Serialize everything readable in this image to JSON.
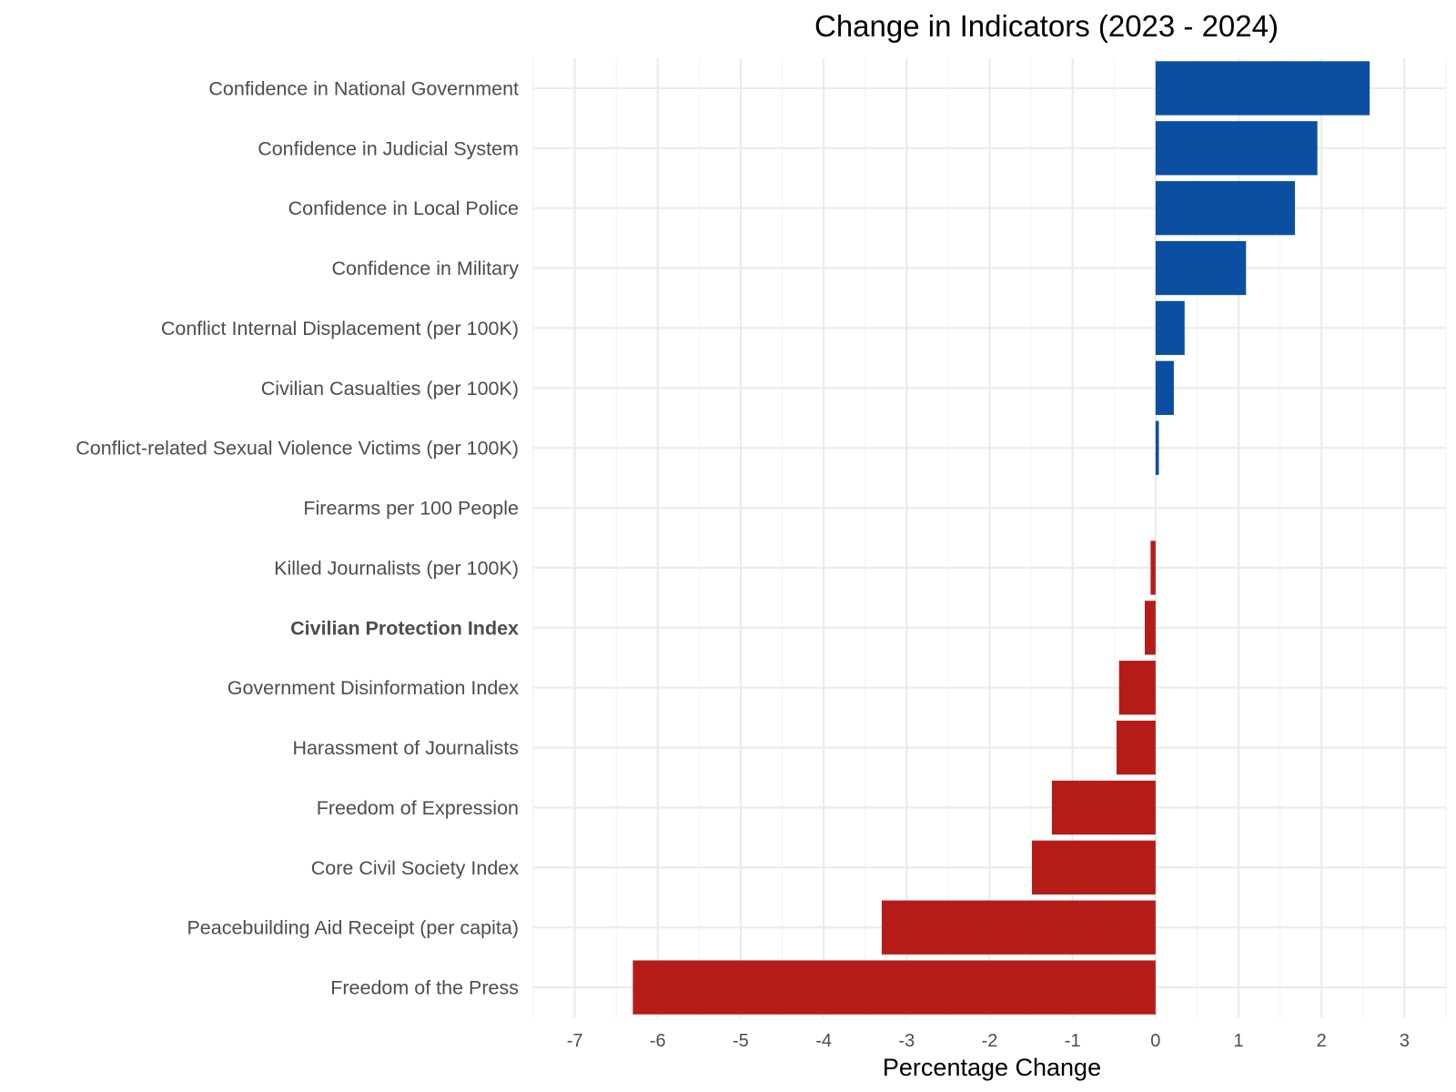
{
  "chart_data": {
    "type": "bar",
    "orientation": "horizontal",
    "title": "Change in Indicators (2023 - 2024)",
    "xlabel": "Percentage Change",
    "ylabel": "",
    "xlim": [
      -7.5,
      3.5
    ],
    "xticks": [
      -7,
      -6,
      -5,
      -4,
      -3,
      -2,
      -1,
      0,
      1,
      2,
      3
    ],
    "grid": true,
    "legend": "none",
    "colors": {
      "positive": "#0b4fa2",
      "negative": "#b51c18"
    },
    "categories": [
      "Confidence in National Government",
      "Confidence in Judicial System",
      "Confidence in Local Police",
      "Confidence in Military",
      "Conflict Internal Displacement (per 100K)",
      "Civilian Casualties (per 100K)",
      "Conflict-related Sexual Violence Victims (per 100K)",
      "Firearms per 100 People",
      "Killed Journalists (per 100K)",
      "Civilian Protection Index",
      "Government Disinformation Index",
      "Harassment of Journalists",
      "Freedom of Expression",
      "Core Civil Society Index",
      "Peacebuilding Aid Receipt (per capita)",
      "Freedom of the Press"
    ],
    "values": [
      2.58,
      1.95,
      1.68,
      1.09,
      0.35,
      0.22,
      0.04,
      0.0,
      -0.06,
      -0.13,
      -0.44,
      -0.47,
      -1.25,
      -1.49,
      -3.3,
      -6.3
    ],
    "bold_categories": [
      "Civilian Protection Index"
    ]
  }
}
